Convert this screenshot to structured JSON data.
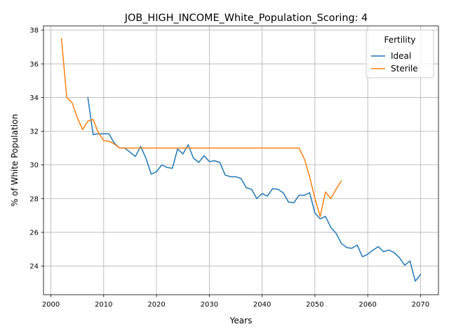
{
  "chart_data": {
    "type": "line",
    "title": "JOB_HIGH_INCOME_White_Population_Scoring: 4",
    "xlabel": "Years",
    "ylabel": "% of White Population",
    "xlim": [
      1998.6,
      2073.4
    ],
    "ylim": [
      22.3,
      38.25
    ],
    "x_ticks": [
      2000,
      2010,
      2020,
      2030,
      2040,
      2050,
      2060,
      2070
    ],
    "x_tick_labels": [
      "2000",
      "2010",
      "2020",
      "2030",
      "2040",
      "2050",
      "2060",
      "2070"
    ],
    "y_ticks": [
      24,
      26,
      28,
      30,
      32,
      34,
      36,
      38
    ],
    "y_tick_labels": [
      "24",
      "26",
      "28",
      "30",
      "32",
      "34",
      "36",
      "38"
    ],
    "grid": true,
    "legend": {
      "title": "Fertility",
      "position": "top-right"
    },
    "series": [
      {
        "name": "Ideal",
        "color": "#1f77b4",
        "x": [
          2007,
          2008,
          2009,
          2010,
          2011,
          2012,
          2013,
          2014,
          2015,
          2016,
          2017,
          2018,
          2019,
          2020,
          2021,
          2022,
          2023,
          2024,
          2025,
          2026,
          2027,
          2028,
          2029,
          2030,
          2031,
          2032,
          2033,
          2034,
          2035,
          2036,
          2037,
          2038,
          2039,
          2040,
          2041,
          2042,
          2043,
          2044,
          2045,
          2046,
          2047,
          2048,
          2049,
          2050,
          2051,
          2052,
          2053,
          2054,
          2055,
          2056,
          2057,
          2058,
          2059,
          2060,
          2061,
          2062,
          2063,
          2064,
          2065,
          2066,
          2067,
          2068,
          2069,
          2070
        ],
        "y": [
          34.0,
          31.8,
          31.85,
          31.85,
          31.85,
          31.3,
          31.0,
          31.0,
          30.75,
          30.5,
          31.1,
          30.4,
          29.45,
          29.6,
          30.0,
          29.85,
          29.8,
          30.95,
          30.65,
          31.2,
          30.4,
          30.15,
          30.55,
          30.2,
          30.25,
          30.15,
          29.4,
          29.3,
          29.3,
          29.2,
          28.65,
          28.55,
          28.0,
          28.3,
          28.15,
          28.6,
          28.55,
          28.35,
          27.8,
          27.75,
          28.2,
          28.2,
          28.35,
          27.15,
          26.8,
          26.95,
          26.3,
          25.95,
          25.35,
          25.1,
          25.05,
          25.25,
          24.55,
          24.7,
          24.95,
          25.15,
          24.85,
          24.95,
          24.8,
          24.5,
          24.05,
          24.3,
          23.1,
          23.5
        ]
      },
      {
        "name": "Sterile",
        "color": "#ff7f0e",
        "x": [
          2002,
          2003,
          2004,
          2005,
          2006,
          2007,
          2008,
          2009,
          2010,
          2011,
          2012,
          2013,
          2014,
          2015,
          2016,
          2017,
          2018,
          2019,
          2020,
          2021,
          2022,
          2023,
          2024,
          2025,
          2026,
          2027,
          2028,
          2029,
          2030,
          2031,
          2032,
          2033,
          2034,
          2035,
          2036,
          2037,
          2038,
          2039,
          2040,
          2041,
          2042,
          2043,
          2044,
          2045,
          2046,
          2047,
          2048,
          2049,
          2050,
          2051,
          2052,
          2053,
          2054,
          2055
        ],
        "y": [
          37.5,
          34.0,
          33.7,
          32.8,
          32.1,
          32.6,
          32.7,
          31.9,
          31.45,
          31.4,
          31.25,
          31.0,
          31.0,
          31.0,
          31.0,
          31.0,
          31.0,
          31.0,
          31.0,
          31.0,
          31.0,
          31.0,
          31.0,
          31.0,
          31.0,
          31.0,
          31.0,
          31.0,
          31.0,
          31.0,
          31.0,
          31.0,
          31.0,
          31.0,
          31.0,
          31.0,
          31.0,
          31.0,
          31.0,
          31.0,
          31.0,
          31.0,
          31.0,
          31.0,
          31.0,
          31.0,
          30.35,
          29.3,
          28.0,
          26.95,
          28.4,
          28.0,
          28.55,
          29.05
        ]
      }
    ]
  }
}
